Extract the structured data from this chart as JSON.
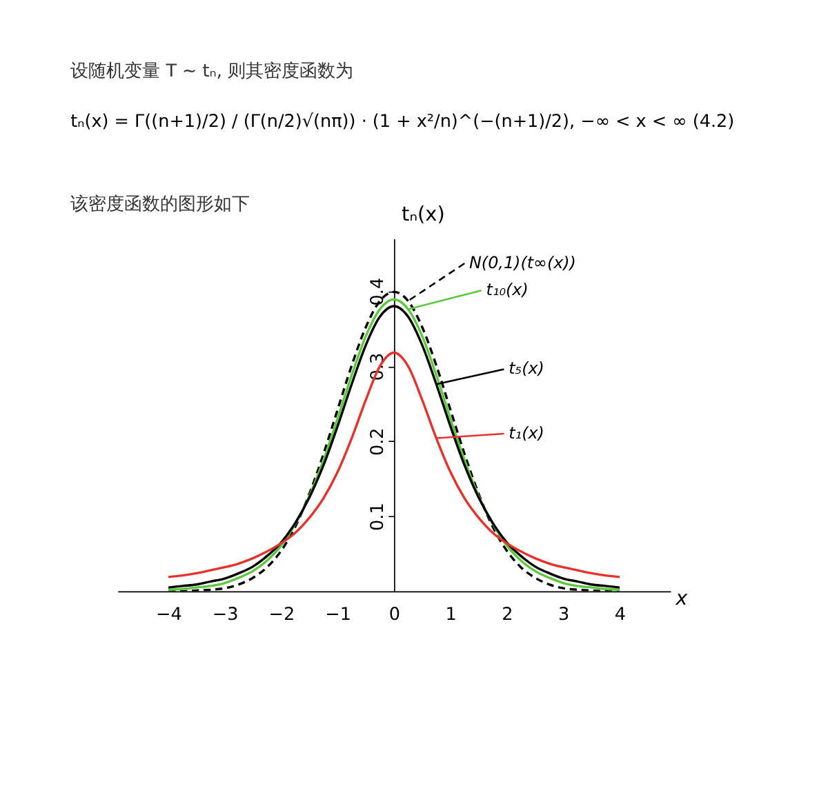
{
  "chart_data": {
    "type": "line",
    "title": "设随机变量 T ~ tₙ, 则其密度函数为",
    "subtitle": "tₙ(x) = Γ((n+1)/2) / (Γ(n/2)√(nπ)) · (1 + x²/n)^(−(n+1)/2),  −∞ < x < ∞        (4.2)",
    "annotations": [
      "该密度函数的图形如下"
    ],
    "xlabel": "x",
    "ylabel": "tₙ(x)",
    "x": [
      -4,
      -3.75,
      -3.5,
      -3.25,
      -3,
      -2.75,
      -2.5,
      -2.25,
      -2,
      -1.75,
      -1.5,
      -1.25,
      -1,
      -0.75,
      -0.5,
      -0.25,
      0,
      0.25,
      0.5,
      0.75,
      1,
      1.25,
      1.5,
      1.75,
      2,
      2.25,
      2.5,
      2.75,
      3,
      3.25,
      3.5,
      3.75,
      4
    ],
    "series": [
      {
        "name": "N(0,1)(t∞(x))",
        "color": "#000000",
        "line_style": "dashed",
        "values": [
          0.0,
          0.0,
          0.001,
          0.002,
          0.004,
          0.009,
          0.018,
          0.032,
          0.054,
          0.086,
          0.13,
          0.183,
          0.242,
          0.301,
          0.352,
          0.387,
          0.399,
          0.387,
          0.352,
          0.301,
          0.242,
          0.183,
          0.13,
          0.086,
          0.054,
          0.032,
          0.018,
          0.009,
          0.004,
          0.002,
          0.001,
          0.0,
          0.0
        ]
      },
      {
        "name": "t₁₀(x)",
        "color": "#5cc83c",
        "line_style": "solid",
        "values": [
          0.002,
          0.003,
          0.005,
          0.007,
          0.011,
          0.018,
          0.027,
          0.041,
          0.061,
          0.09,
          0.127,
          0.175,
          0.23,
          0.288,
          0.34,
          0.376,
          0.389,
          0.376,
          0.34,
          0.288,
          0.23,
          0.175,
          0.127,
          0.09,
          0.061,
          0.041,
          0.027,
          0.018,
          0.011,
          0.007,
          0.005,
          0.003,
          0.002
        ]
      },
      {
        "name": "t₅(x)",
        "color": "#000000",
        "line_style": "solid",
        "values": [
          0.005,
          0.007,
          0.009,
          0.013,
          0.017,
          0.024,
          0.033,
          0.047,
          0.065,
          0.091,
          0.125,
          0.168,
          0.22,
          0.276,
          0.328,
          0.366,
          0.38,
          0.366,
          0.328,
          0.276,
          0.22,
          0.168,
          0.125,
          0.091,
          0.065,
          0.047,
          0.033,
          0.024,
          0.017,
          0.013,
          0.009,
          0.007,
          0.005
        ]
      },
      {
        "name": "t₁(x)",
        "color": "#e8312a",
        "line_style": "solid",
        "values": [
          0.019,
          0.021,
          0.024,
          0.028,
          0.032,
          0.037,
          0.044,
          0.053,
          0.064,
          0.078,
          0.098,
          0.124,
          0.159,
          0.204,
          0.255,
          0.3,
          0.318,
          0.3,
          0.255,
          0.204,
          0.159,
          0.124,
          0.098,
          0.078,
          0.064,
          0.053,
          0.044,
          0.037,
          0.032,
          0.028,
          0.024,
          0.021,
          0.019
        ]
      }
    ],
    "xlim": [
      -4.9,
      4.9
    ],
    "ylim": [
      0,
      0.47
    ],
    "xticks": [
      -4,
      -3,
      -2,
      -1,
      0,
      1,
      2,
      3,
      4
    ],
    "yticks": [
      0.1,
      0.2,
      0.3,
      0.4
    ],
    "grid": false,
    "legend": "top right"
  }
}
